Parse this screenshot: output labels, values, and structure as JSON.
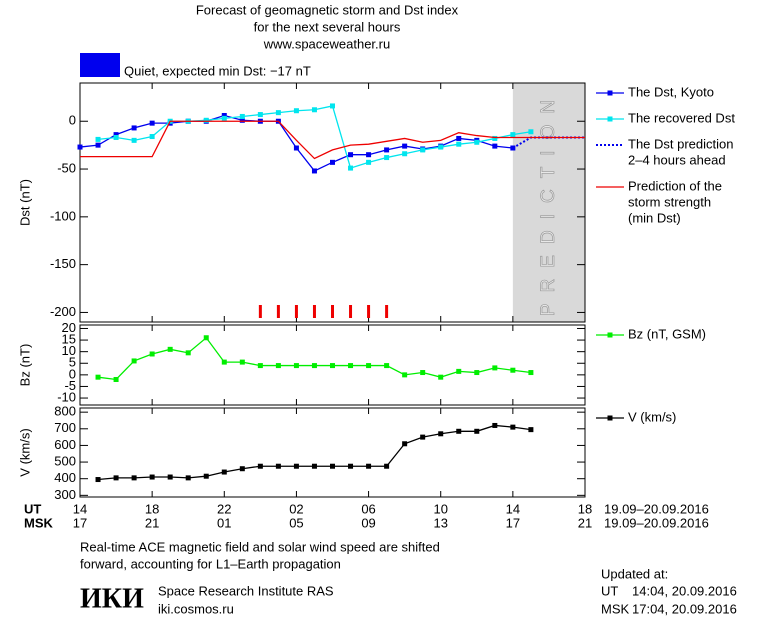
{
  "header": {
    "title": [
      "Forecast of geomagnetic storm and Dst index",
      "for the next several hours",
      "www.spaceweather.ru"
    ]
  },
  "status": {
    "text": "Quiet, expected min Dst: −17 nT",
    "color": "#0000ee"
  },
  "x_axis": {
    "xlim": [
      14,
      42
    ],
    "ticks": [
      14,
      18,
      22,
      {
        "value": 26,
        "label": "02"
      },
      {
        "value": 30,
        "label": "06"
      },
      {
        "value": 34,
        "label": "10"
      },
      {
        "value": 38,
        "label": "14"
      },
      {
        "value": 42,
        "label": "18"
      }
    ],
    "msk_labels": [
      "17",
      "21",
      "01",
      "05",
      "09",
      "13",
      "17",
      "21"
    ],
    "ut_label": "UT",
    "msk_label": "MSK",
    "date_range": "19.09–20.09.2016"
  },
  "chart_data": [
    {
      "type": "line",
      "ylabel": "Dst (nT)",
      "ylim": [
        -210,
        40
      ],
      "yticks": [
        0,
        -50,
        -100,
        -150,
        -200
      ],
      "prediction_band": {
        "xlim": [
          38,
          42
        ],
        "label": "PREDICTION",
        "color": "#d9d9d9"
      },
      "markers": {
        "x": [
          24,
          25,
          26,
          27,
          28,
          29,
          30,
          31
        ],
        "color": "#ee0000"
      },
      "series": [
        {
          "name": [
            "The Dst, Kyoto"
          ],
          "color": "#0000ee",
          "marker": "square",
          "x": [
            14,
            15,
            16,
            17,
            18,
            19,
            20,
            21,
            22,
            23,
            24,
            25,
            26,
            27,
            28,
            29,
            30,
            31,
            32,
            33,
            34,
            35,
            36,
            37,
            38
          ],
          "values": [
            -27,
            -25,
            -14,
            -7,
            -2,
            -2,
            0,
            0,
            6,
            1,
            0,
            0,
            -28,
            -52,
            -43,
            -35,
            -35,
            -30,
            -26,
            -29,
            -26,
            -18,
            -20,
            -26,
            -28
          ]
        },
        {
          "name": [
            "The recovered Dst"
          ],
          "color": "#00e5ee",
          "marker": "square",
          "x": [
            15,
            16,
            17,
            18,
            19,
            20,
            21,
            22,
            23,
            24,
            25,
            26,
            27,
            28,
            29,
            30,
            31,
            32,
            33,
            34,
            35,
            36,
            37,
            38,
            39
          ],
          "values": [
            -19,
            -17,
            -20,
            -16,
            0,
            0,
            1,
            3,
            5,
            7,
            9,
            11,
            12,
            16,
            -49,
            -43,
            -38,
            -34,
            -30,
            -27,
            -24,
            -22,
            -18,
            -14,
            -11
          ]
        },
        {
          "name": [
            "The Dst prediction",
            "2–4 hours ahead"
          ],
          "color": "#0000ee",
          "dash": "dotted",
          "x": [
            38,
            39,
            42
          ],
          "values": [
            -28,
            -17,
            -17
          ]
        },
        {
          "name": [
            "Prediction of the",
            "storm strength",
            "(min Dst)"
          ],
          "color": "#ee0000",
          "x": [
            14,
            15,
            16,
            17,
            18,
            19,
            20,
            21,
            22,
            23,
            24,
            25,
            26,
            27,
            28,
            29,
            30,
            31,
            32,
            33,
            34,
            35,
            36,
            37,
            38,
            42
          ],
          "values": [
            -37,
            -37,
            -37,
            -37,
            -37,
            0,
            0,
            0,
            0,
            0,
            0,
            0,
            -20,
            -39,
            -30,
            -25,
            -24,
            -21,
            -18,
            -22,
            -20,
            -12,
            -15,
            -17,
            -17,
            -17
          ]
        }
      ]
    },
    {
      "type": "line",
      "ylabel": "Bz (nT)",
      "ylim": [
        -13,
        21.5
      ],
      "yticks": [
        20,
        15,
        10,
        5,
        0,
        -5,
        -10
      ],
      "series": [
        {
          "name": [
            "Bz (nT, GSM)"
          ],
          "color": "#00ee00",
          "marker": "square",
          "x": [
            15,
            16,
            17,
            18,
            19,
            20,
            21,
            22,
            23,
            24,
            25,
            26,
            27,
            28,
            29,
            30,
            31,
            32,
            33,
            34,
            35,
            36,
            37,
            38,
            39
          ],
          "values": [
            -1,
            -2,
            6,
            9,
            11,
            9.5,
            16,
            5.5,
            5.5,
            4,
            4,
            4,
            4,
            4,
            4,
            4,
            4,
            0,
            1,
            -1,
            1.5,
            1,
            3,
            2,
            1
          ]
        }
      ]
    },
    {
      "type": "line",
      "ylabel": "V (km/s)",
      "ylim": [
        290,
        825
      ],
      "yticks": [
        800,
        700,
        600,
        500,
        400,
        300
      ],
      "series": [
        {
          "name": [
            "V (km/s)"
          ],
          "color": "#000000",
          "marker": "square",
          "x": [
            15,
            16,
            17,
            18,
            19,
            20,
            21,
            22,
            23,
            24,
            25,
            26,
            27,
            28,
            29,
            30,
            31,
            32,
            33,
            34,
            35,
            36,
            37,
            38,
            39
          ],
          "values": [
            395,
            405,
            405,
            410,
            410,
            405,
            415,
            440,
            460,
            475,
            475,
            475,
            475,
            475,
            475,
            475,
            475,
            610,
            650,
            670,
            685,
            685,
            720,
            710,
            695
          ]
        }
      ]
    }
  ],
  "footer": {
    "note": [
      "Real-time ACE magnetic field and solar wind speed are shifted",
      "forward, accounting for L1–Earth propagation"
    ],
    "logo": "ИКИ",
    "institute": "Space Research Institute RAS",
    "site": "iki.cosmos.ru",
    "updated": {
      "title": "Updated at:",
      "ut_label": "UT",
      "ut_time": "14:04, 20.09.2016",
      "msk_label": "MSK",
      "msk_time": "17:04, 20.09.2016"
    }
  }
}
